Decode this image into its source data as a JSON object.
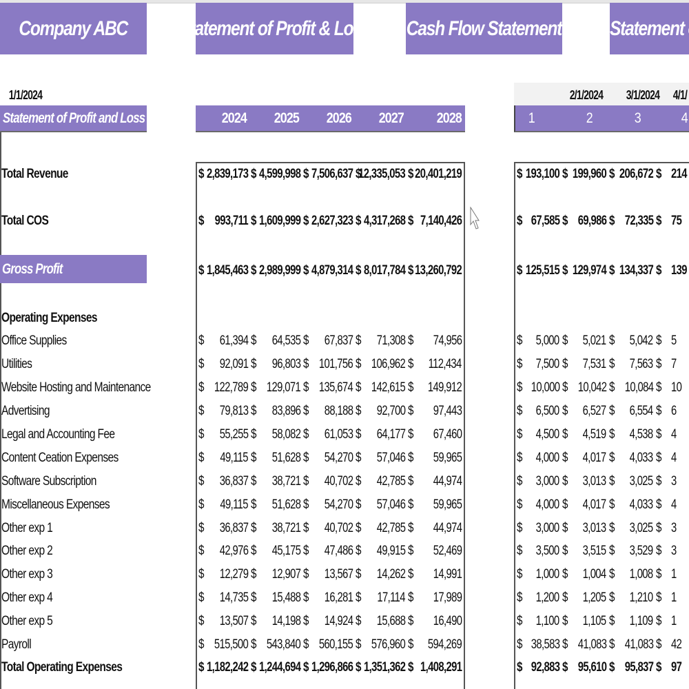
{
  "banners": [
    "Company ABC",
    "Statement of Profit & Loss",
    "Cash Flow Statement",
    "Statement of"
  ],
  "header": {
    "section_title": "Statement of Profit and Loss",
    "years": [
      "2024",
      "2025",
      "2026",
      "2027",
      "2028"
    ],
    "dates": [
      "1/1/2024",
      "2/1/2024",
      "3/1/2024",
      "4/1/"
    ],
    "month_numbers": [
      "1",
      "2",
      "3",
      "4"
    ]
  },
  "theme": {
    "accent": "#8a7ac4",
    "text": "#111111"
  },
  "currency_symbol": "$",
  "rows": [
    {
      "label": "Total Revenue",
      "style": "bold-total",
      "annual": [
        "2,839,173",
        "4,599,998",
        "7,506,637",
        "12,335,053",
        "20,401,219"
      ],
      "monthly": [
        "193,100",
        "199,960",
        "206,672",
        "214"
      ]
    },
    {
      "label": "Total COS",
      "style": "bold-total",
      "annual": [
        "993,711",
        "1,609,999",
        "2,627,323",
        "4,317,268",
        "7,140,426"
      ],
      "monthly": [
        "67,585",
        "69,986",
        "72,335",
        "75"
      ]
    },
    {
      "label": "Gross Profit",
      "style": "highlight",
      "annual": [
        "1,845,463",
        "2,989,999",
        "4,879,314",
        "8,017,784",
        "13,260,792"
      ],
      "monthly": [
        "125,515",
        "129,974",
        "134,337",
        "139"
      ]
    },
    {
      "label": "Operating Expenses",
      "style": "section"
    },
    {
      "label": "Office Supplies",
      "annual": [
        "61,394",
        "64,535",
        "67,837",
        "71,308",
        "74,956"
      ],
      "monthly": [
        "5,000",
        "5,021",
        "5,042",
        "5"
      ]
    },
    {
      "label": "Utilities",
      "annual": [
        "92,091",
        "96,803",
        "101,756",
        "106,962",
        "112,434"
      ],
      "monthly": [
        "7,500",
        "7,531",
        "7,563",
        "7"
      ]
    },
    {
      "label": "Website Hosting and Maintenance",
      "annual": [
        "122,789",
        "129,071",
        "135,674",
        "142,615",
        "149,912"
      ],
      "monthly": [
        "10,000",
        "10,042",
        "10,084",
        "10"
      ]
    },
    {
      "label": "Advertising",
      "annual": [
        "79,813",
        "83,896",
        "88,188",
        "92,700",
        "97,443"
      ],
      "monthly": [
        "6,500",
        "6,527",
        "6,554",
        "6"
      ]
    },
    {
      "label": "Legal and Accounting Fee",
      "annual": [
        "55,255",
        "58,082",
        "61,053",
        "64,177",
        "67,460"
      ],
      "monthly": [
        "4,500",
        "4,519",
        "4,538",
        "4"
      ]
    },
    {
      "label": "Content Ceation Expenses",
      "annual": [
        "49,115",
        "51,628",
        "54,270",
        "57,046",
        "59,965"
      ],
      "monthly": [
        "4,000",
        "4,017",
        "4,033",
        "4"
      ]
    },
    {
      "label": "Software Subscription",
      "annual": [
        "36,837",
        "38,721",
        "40,702",
        "42,785",
        "44,974"
      ],
      "monthly": [
        "3,000",
        "3,013",
        "3,025",
        "3"
      ]
    },
    {
      "label": "Miscellaneous Expenses",
      "annual": [
        "49,115",
        "51,628",
        "54,270",
        "57,046",
        "59,965"
      ],
      "monthly": [
        "4,000",
        "4,017",
        "4,033",
        "4"
      ]
    },
    {
      "label": "Other exp 1",
      "annual": [
        "36,837",
        "38,721",
        "40,702",
        "42,785",
        "44,974"
      ],
      "monthly": [
        "3,000",
        "3,013",
        "3,025",
        "3"
      ]
    },
    {
      "label": "Other exp 2",
      "annual": [
        "42,976",
        "45,175",
        "47,486",
        "49,915",
        "52,469"
      ],
      "monthly": [
        "3,500",
        "3,515",
        "3,529",
        "3"
      ]
    },
    {
      "label": "Other exp 3",
      "annual": [
        "12,279",
        "12,907",
        "13,567",
        "14,262",
        "14,991"
      ],
      "monthly": [
        "1,000",
        "1,004",
        "1,008",
        "1"
      ]
    },
    {
      "label": "Other exp 4",
      "annual": [
        "14,735",
        "15,488",
        "16,281",
        "17,114",
        "17,989"
      ],
      "monthly": [
        "1,200",
        "1,205",
        "1,210",
        "1"
      ]
    },
    {
      "label": "Other exp 5",
      "annual": [
        "13,507",
        "14,198",
        "14,924",
        "15,688",
        "16,490"
      ],
      "monthly": [
        "1,100",
        "1,105",
        "1,109",
        "1"
      ]
    },
    {
      "label": "Payroll",
      "annual": [
        "515,500",
        "543,840",
        "560,155",
        "576,960",
        "594,269"
      ],
      "monthly": [
        "38,583",
        "41,083",
        "41,083",
        "42"
      ]
    },
    {
      "label": "Total Operating Expenses",
      "style": "bold-total",
      "annual": [
        "1,182,242",
        "1,244,694",
        "1,296,866",
        "1,351,362",
        "1,408,291"
      ],
      "monthly": [
        "92,883",
        "95,610",
        "95,837",
        "97"
      ]
    }
  ]
}
